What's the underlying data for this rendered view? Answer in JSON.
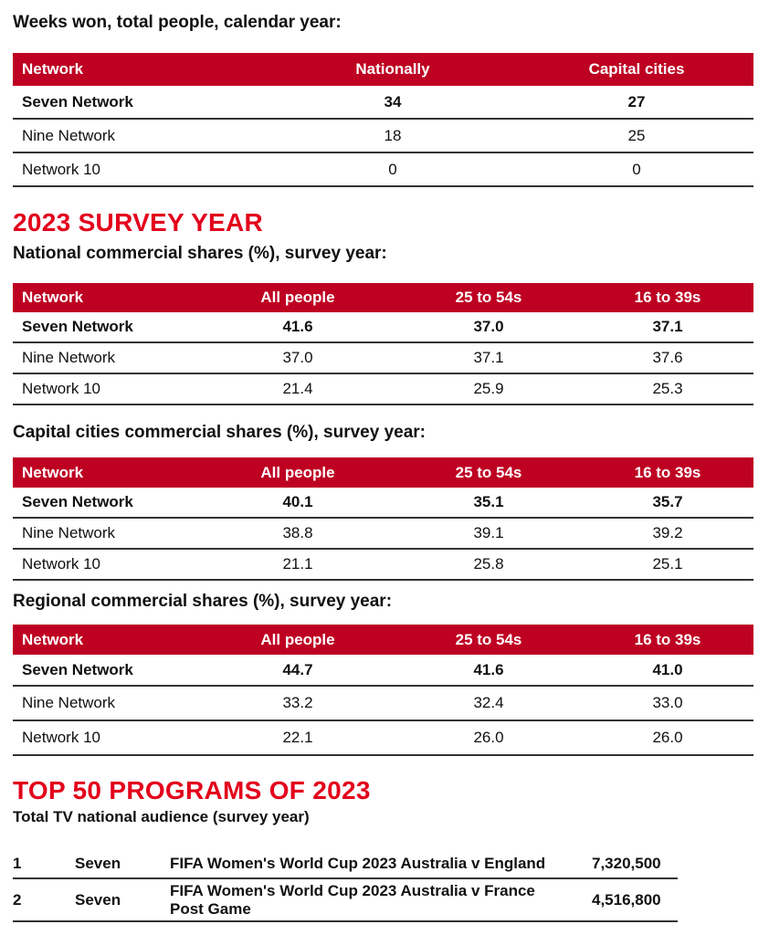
{
  "weeks_won": {
    "title": "Weeks won, total people, calendar year:",
    "headers": [
      "Network",
      "Nationally",
      "Capital cities"
    ],
    "rows": [
      [
        "Seven Network",
        "34",
        "27"
      ],
      [
        "Nine Network",
        "18",
        "25"
      ],
      [
        "Network 10",
        "0",
        "0"
      ]
    ]
  },
  "survey_heading": "2023 SURVEY YEAR",
  "national": {
    "title": "National commercial shares (%), survey year:",
    "headers": [
      "Network",
      "All people",
      "25 to 54s",
      "16 to 39s"
    ],
    "rows": [
      [
        "Seven Network",
        "41.6",
        "37.0",
        "37.1"
      ],
      [
        "Nine Network",
        "37.0",
        "37.1",
        "37.6"
      ],
      [
        "Network 10",
        "21.4",
        "25.9",
        "25.3"
      ]
    ]
  },
  "capital": {
    "title": "Capital cities commercial shares (%), survey year:",
    "headers": [
      "Network",
      "All people",
      "25 to 54s",
      "16 to 39s"
    ],
    "rows": [
      [
        "Seven Network",
        "40.1",
        "35.1",
        "35.7"
      ],
      [
        "Nine Network",
        "38.8",
        "39.1",
        "39.2"
      ],
      [
        "Network 10",
        "21.1",
        "25.8",
        "25.1"
      ]
    ]
  },
  "regional": {
    "title": "Regional commercial shares (%), survey year:",
    "headers": [
      "Network",
      "All people",
      "25 to 54s",
      "16 to 39s"
    ],
    "rows": [
      [
        "Seven Network",
        "44.7",
        "41.6",
        "41.0"
      ],
      [
        "Nine Network",
        "33.2",
        "32.4",
        "33.0"
      ],
      [
        "Network 10",
        "22.1",
        "26.0",
        "26.0"
      ]
    ]
  },
  "top50": {
    "heading": "TOP 50 PROGRAMS OF 2023",
    "subtitle": "Total TV national audience (survey year)",
    "rows": [
      [
        "1",
        "Seven",
        "FIFA Women's World Cup 2023 Australia v England",
        "7,320,500"
      ],
      [
        "2",
        "Seven",
        "FIFA Women's World Cup 2023 Australia v France Post Game",
        "4,516,800"
      ]
    ]
  },
  "colors": {
    "header_bg": "#be0022",
    "heading_red": "#e3001b"
  }
}
